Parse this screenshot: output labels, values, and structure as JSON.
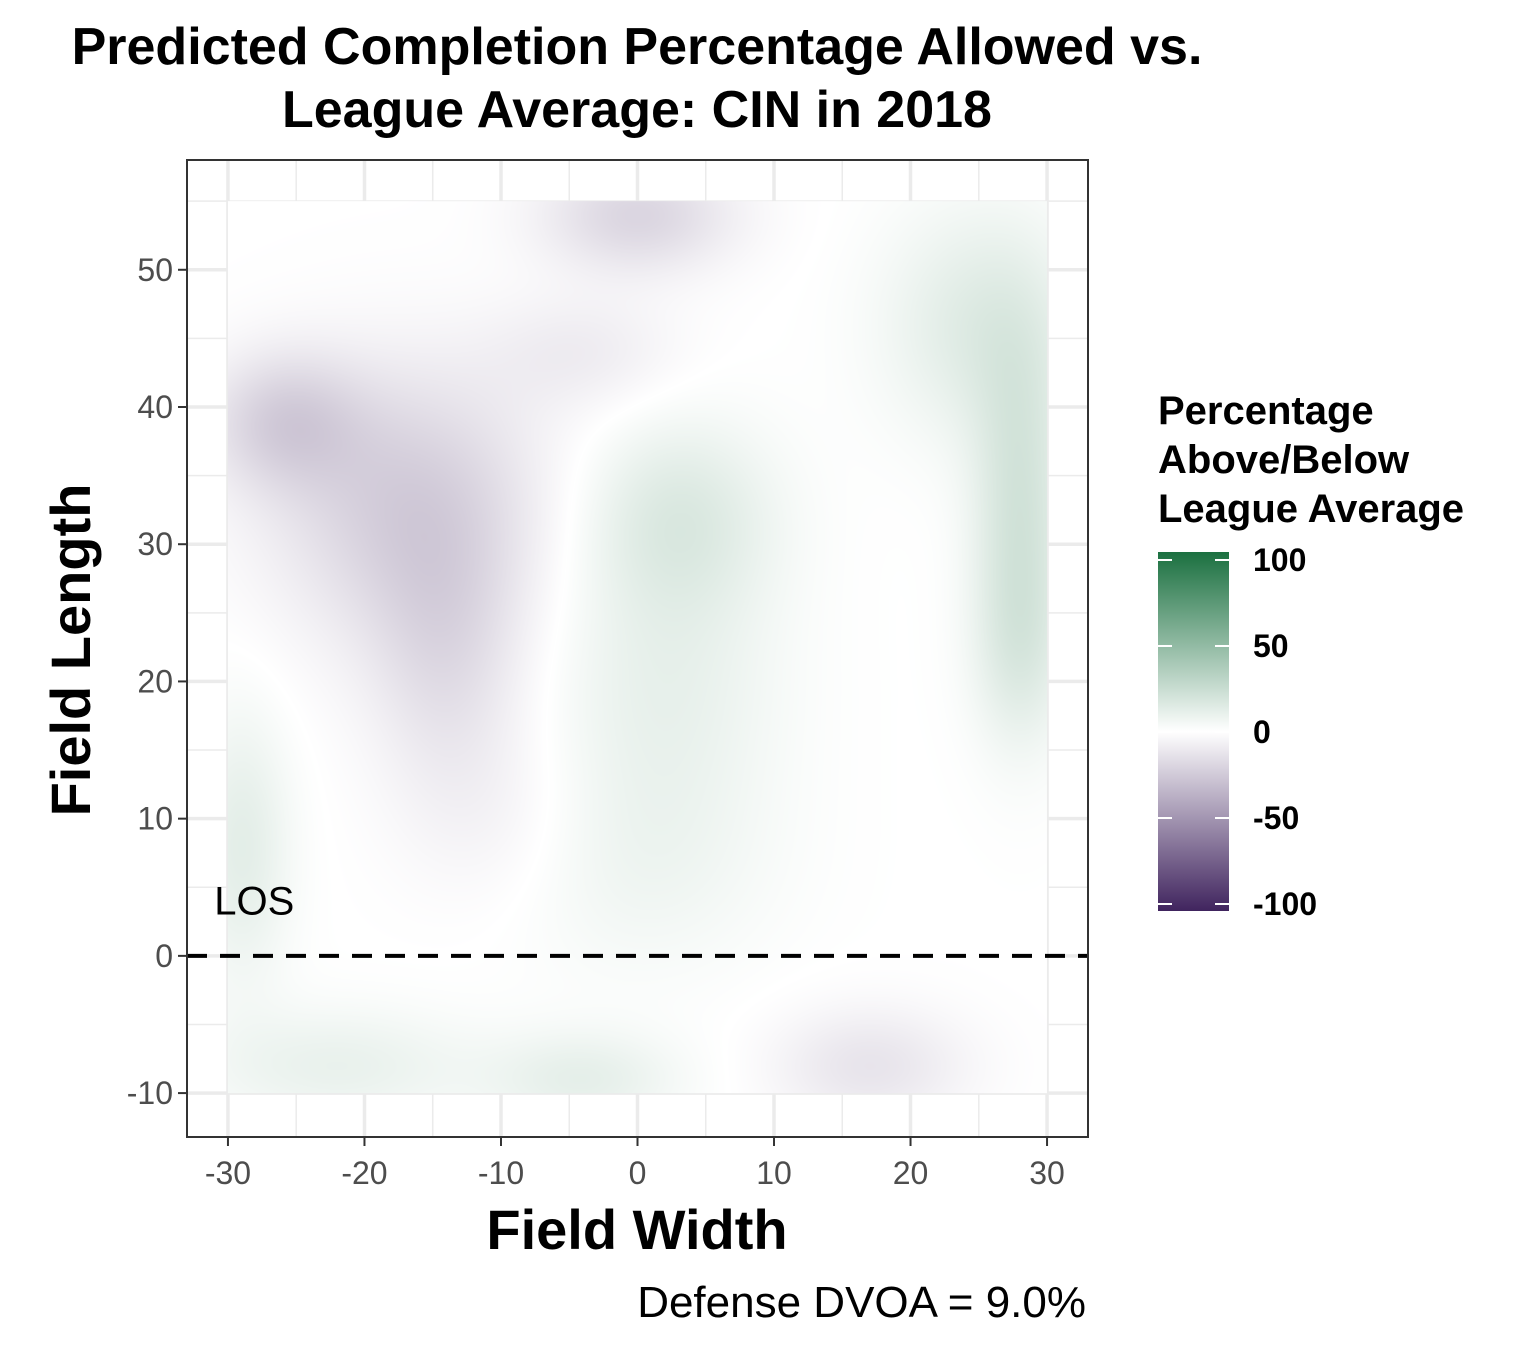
{
  "chart_data": {
    "type": "heatmap",
    "title_lines": [
      "Predicted Completion Percentage Allowed vs.",
      "League Average: CIN in 2018"
    ],
    "xlabel": "Field Width",
    "ylabel": "Field Length",
    "xlim": [
      -33,
      33
    ],
    "ylim": [
      -13.2,
      58
    ],
    "data_extent": {
      "x": [
        -30,
        30
      ],
      "y": [
        -10,
        55
      ]
    },
    "x_ticks": [
      -30,
      -20,
      -10,
      0,
      10,
      20,
      30
    ],
    "x_tick_labels": [
      "-30",
      "-20",
      "-10",
      "0",
      "10",
      "20",
      "30"
    ],
    "y_ticks": [
      -10,
      0,
      10,
      20,
      30,
      40,
      50
    ],
    "y_tick_labels": [
      "-10",
      "0",
      "10",
      "20",
      "30",
      "40",
      "50"
    ],
    "reference_line": {
      "y": 0,
      "style": "dashed",
      "label": "LOS",
      "label_x": -31,
      "label_y": 3
    },
    "caption": "Defense DVOA = 9.0%",
    "legend": {
      "title_lines": [
        "Percentage",
        "Above/Below",
        "League Average"
      ],
      "range": [
        -100,
        100
      ],
      "breaks": [
        100,
        50,
        0,
        -50,
        -100
      ],
      "break_labels": [
        "100",
        "50",
        "0",
        "-50",
        "-100"
      ],
      "colors": {
        "low": "#40245e",
        "mid": "#ffffff",
        "high": "#1b7040"
      }
    },
    "surface_features": [
      {
        "x": -17,
        "y": 33,
        "value": -16,
        "sx": 7,
        "sy": 7
      },
      {
        "x": -26,
        "y": 39,
        "value": -14,
        "sx": 4,
        "sy": 3.5
      },
      {
        "x": -14,
        "y": 22,
        "value": -10,
        "sx": 4,
        "sy": 7
      },
      {
        "x": -10,
        "y": 10,
        "value": -4,
        "sx": 5,
        "sy": 5
      },
      {
        "x": 0,
        "y": 54,
        "value": -14,
        "sx": 5,
        "sy": 3
      },
      {
        "x": -4,
        "y": 44,
        "value": -6,
        "sx": 5,
        "sy": 3
      },
      {
        "x": 17,
        "y": -8,
        "value": -9,
        "sx": 5,
        "sy": 3
      },
      {
        "x": 3,
        "y": 32,
        "value": 11,
        "sx": 5,
        "sy": 5
      },
      {
        "x": 2,
        "y": 20,
        "value": 7,
        "sx": 6,
        "sy": 7
      },
      {
        "x": 0,
        "y": 7,
        "value": 5,
        "sx": 7,
        "sy": 6
      },
      {
        "x": 28,
        "y": 32,
        "value": 14,
        "sx": 2.5,
        "sy": 9
      },
      {
        "x": 25,
        "y": 46,
        "value": 10,
        "sx": 5,
        "sy": 6
      },
      {
        "x": -29,
        "y": 8,
        "value": 9,
        "sx": 2.5,
        "sy": 7
      },
      {
        "x": -22,
        "y": -8,
        "value": 7,
        "sx": 7,
        "sy": 3
      },
      {
        "x": -4,
        "y": -9,
        "value": 8,
        "sx": 5,
        "sy": 2.5
      },
      {
        "x": 28,
        "y": 22,
        "value": 6,
        "sx": 2.5,
        "sy": 5
      }
    ]
  }
}
